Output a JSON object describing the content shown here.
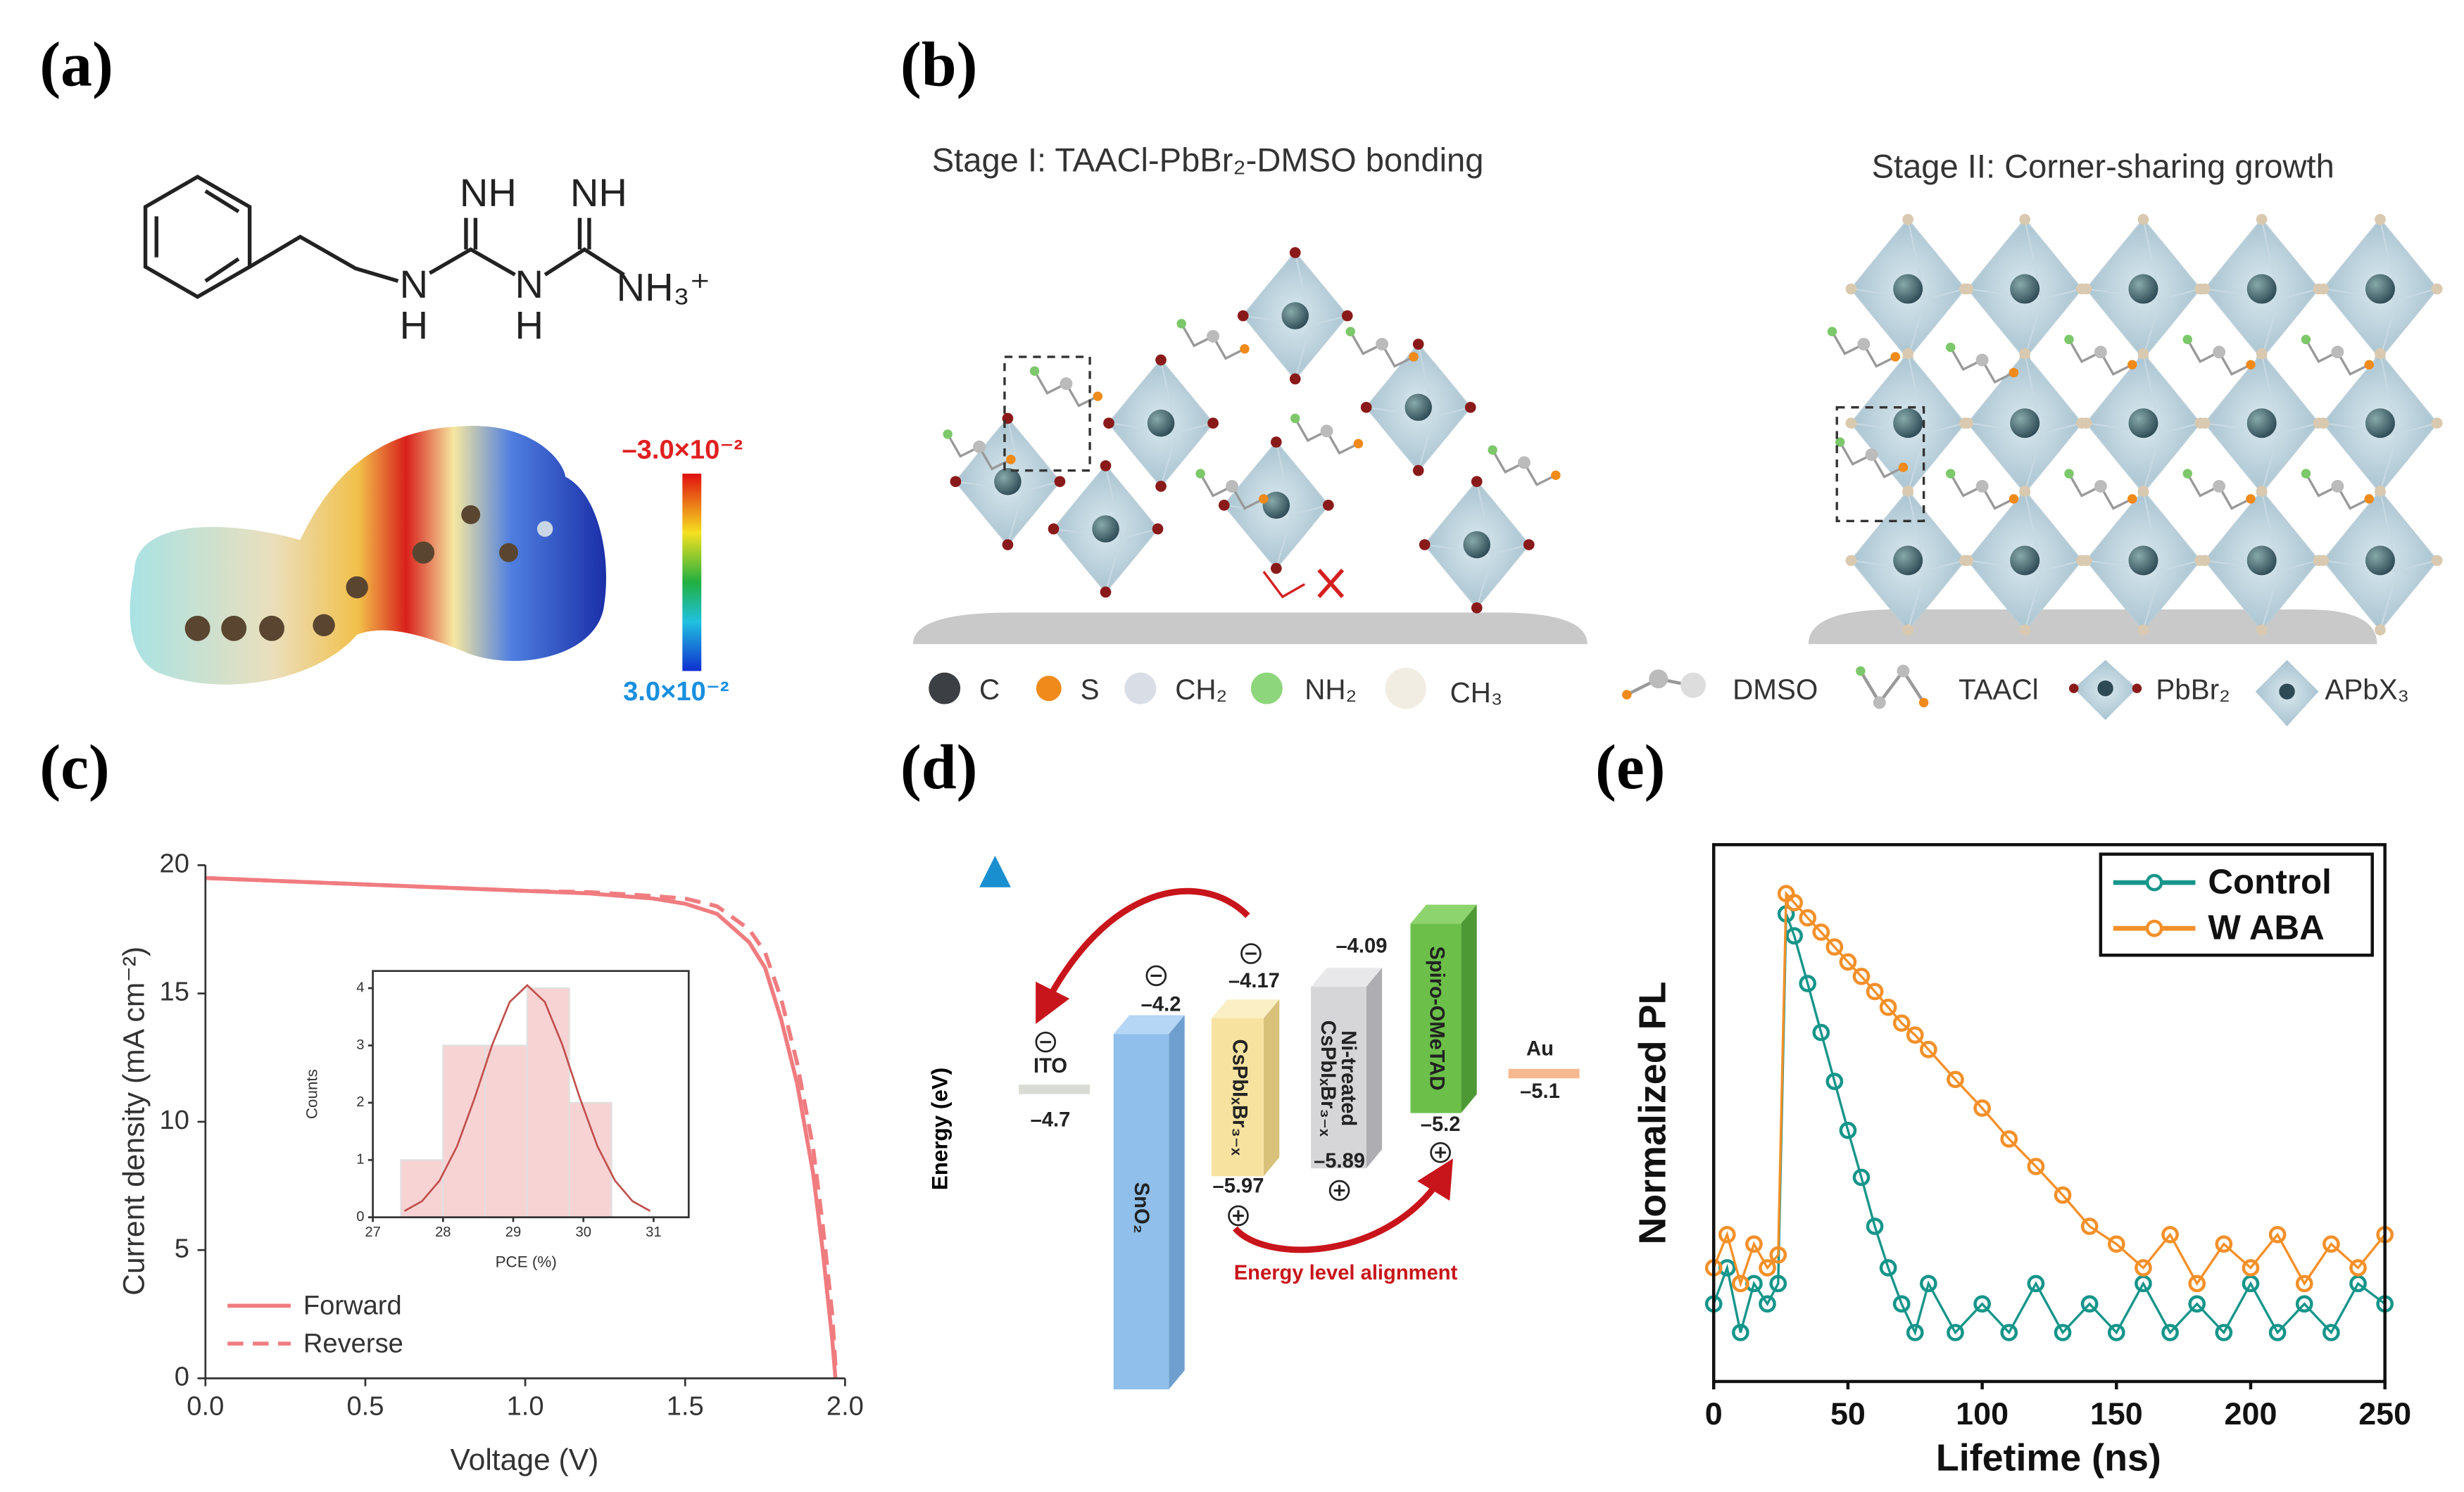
{
  "panel_labels": [
    "(a)",
    "(b)",
    "(c)",
    "(d)",
    "(e)"
  ],
  "molecule": {
    "atoms": [
      "NH",
      "NH",
      "N",
      "H",
      "N",
      "H",
      "NH₃⁺"
    ],
    "esp_scale": {
      "max_label": "–3.0×10⁻²",
      "min_label": "3.0×10⁻²"
    }
  },
  "stage_diagram": {
    "stage_1": "Stage I: TAACl-PbBr₂-DMSO bonding",
    "stage_2": "Stage II: Corner-sharing growth",
    "legend": [
      "C",
      "S",
      "CH₂",
      "NH₂",
      "CH₃",
      "DMSO",
      "TAACl",
      "PbBr₂",
      "APbX₃"
    ]
  },
  "energy_diagram": {
    "axis_label": "Energy (eV)",
    "annotation": "Energy level alignment",
    "layers": [
      {
        "label": [
          "ITO"
        ],
        "levels": [
          "–4.7"
        ]
      },
      {
        "label": [
          "SnO₂"
        ],
        "levels": [
          "–4.2"
        ]
      },
      {
        "label": [
          "CsPbIₓBr₃₋ₓ"
        ],
        "levels": [
          "–4.17",
          "–5.97"
        ]
      },
      {
        "label": [
          "Ni-treated",
          "CsPbIₓBr₃₋ₓ"
        ],
        "levels": [
          "–4.09",
          "–5.89"
        ]
      },
      {
        "label": [
          "Spiro-OMeTAD"
        ],
        "levels": [
          "–5.2"
        ]
      },
      {
        "label": [
          "Au"
        ],
        "levels": [
          "–5.1"
        ]
      }
    ]
  },
  "chart_data": [
    {
      "type": "line",
      "xlabel": "Voltage (V)",
      "ylabel": "Current density (mA cm⁻²)",
      "x": [
        0,
        0.2,
        0.4,
        0.6,
        0.8,
        1.0,
        1.2,
        1.4,
        1.5,
        1.6,
        1.7,
        1.75,
        1.8,
        1.85,
        1.9,
        1.93,
        1.96,
        1.97
      ],
      "series": [
        {
          "name": "Forward",
          "color": "#f07c80",
          "dash": false,
          "values": [
            19.5,
            19.4,
            19.3,
            19.2,
            19.1,
            19.0,
            18.9,
            18.7,
            18.5,
            18.1,
            17.0,
            16.0,
            14.0,
            11.5,
            8.0,
            5.0,
            1.5,
            0
          ]
        },
        {
          "name": "Reverse",
          "color": "#f07c80",
          "dash": true,
          "values": [
            19.5,
            19.4,
            19.3,
            19.2,
            19.1,
            19.0,
            18.95,
            18.8,
            18.7,
            18.4,
            17.5,
            16.6,
            14.8,
            12.3,
            9.0,
            6.0,
            2.5,
            0.5
          ]
        }
      ],
      "xlim": [
        0,
        2
      ],
      "xticks": [
        {
          "value": 0,
          "label": "0.0"
        },
        0.5,
        {
          "value": 1,
          "label": "1.0"
        },
        1.5,
        {
          "value": 2,
          "label": "2.0"
        }
      ],
      "ylim": [
        0,
        20
      ],
      "yticks": [
        0,
        5,
        10,
        15,
        20
      ],
      "legend": "lower left"
    },
    {
      "type": "histogram",
      "xlabel": "PCE (%)",
      "ylabel": "Counts",
      "bins": [
        27.4,
        28.0,
        28.6,
        29.2,
        29.8,
        30.4
      ],
      "counts": [
        1,
        3,
        3,
        4,
        2
      ],
      "color": "#f6c4c5",
      "fit": {
        "color": "#c0504d",
        "x": [
          27.45,
          27.7,
          27.95,
          28.2,
          28.45,
          28.7,
          28.95,
          29.2,
          29.45,
          29.7,
          29.95,
          30.2,
          30.45,
          30.7,
          30.95
        ],
        "values": [
          0.11,
          0.28,
          0.64,
          1.24,
          2.08,
          3.01,
          3.76,
          4.05,
          3.76,
          3.01,
          2.08,
          1.24,
          0.64,
          0.28,
          0.11
        ]
      },
      "xlim": [
        27,
        31.5
      ],
      "xticks": [
        27,
        28,
        29,
        30,
        31
      ],
      "ylim": [
        0,
        4.3
      ],
      "yticks": [
        0,
        1,
        2,
        3,
        4
      ]
    },
    {
      "type": "line",
      "markers": true,
      "xlabel": "Lifetime (ns)",
      "ylabel": "Normalized PL",
      "yscale": "log",
      "x": [
        0,
        5,
        10,
        15,
        20,
        24,
        27,
        30,
        35,
        40,
        45,
        50,
        55,
        60,
        65,
        70,
        75,
        80,
        90,
        100,
        110,
        120,
        130,
        140,
        150,
        160,
        170,
        180,
        190,
        200,
        210,
        220,
        230,
        240,
        250
      ],
      "series": [
        {
          "name": "Control",
          "color": "#16958a",
          "values": [
            0.003,
            0.005,
            0.002,
            0.004,
            0.003,
            0.004,
            0.75,
            0.55,
            0.28,
            0.14,
            0.07,
            0.035,
            0.018,
            0.009,
            0.005,
            0.003,
            0.002,
            0.004,
            0.002,
            0.003,
            0.002,
            0.004,
            0.002,
            0.003,
            0.002,
            0.004,
            0.002,
            0.003,
            0.002,
            0.004,
            0.002,
            0.003,
            0.002,
            0.004,
            0.003
          ]
        },
        {
          "name": "W ABA",
          "color": "#f39029",
          "values": [
            0.005,
            0.008,
            0.004,
            0.007,
            0.005,
            0.006,
            1.0,
            0.88,
            0.71,
            0.58,
            0.47,
            0.38,
            0.31,
            0.25,
            0.2,
            0.16,
            0.135,
            0.11,
            0.072,
            0.048,
            0.031,
            0.021,
            0.014,
            0.009,
            0.007,
            0.005,
            0.008,
            0.004,
            0.007,
            0.005,
            0.008,
            0.004,
            0.007,
            0.005,
            0.008
          ]
        }
      ],
      "xlim": [
        0,
        250
      ],
      "xticks": [
        0,
        50,
        100,
        150,
        200,
        250
      ],
      "ylim": [
        0.001,
        2
      ],
      "legend": "upper right"
    }
  ]
}
